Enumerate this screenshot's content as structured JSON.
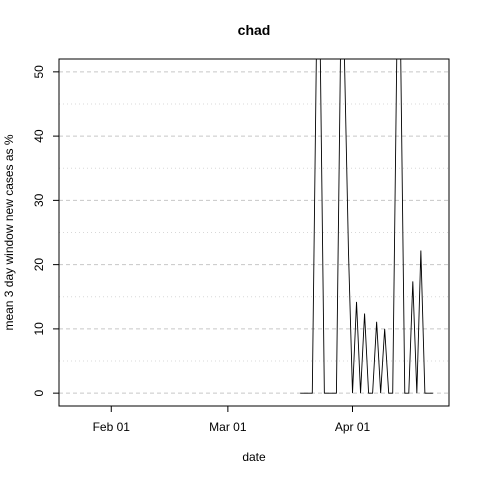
{
  "chart_data": {
    "type": "line",
    "title": "chad",
    "xlabel": "date",
    "ylabel": "mean  3  day window new cases as %",
    "x_ticks": [
      {
        "date": "2020-02-01",
        "label": "Feb 01"
      },
      {
        "date": "2020-03-01",
        "label": "Mar 01"
      },
      {
        "date": "2020-04-01",
        "label": "Apr 01"
      }
    ],
    "y_ticks": [
      0,
      10,
      20,
      30,
      40,
      50
    ],
    "xlim": [
      "2020-01-19",
      "2020-04-25"
    ],
    "ylim": [
      -2,
      52
    ],
    "grid_major": [
      0,
      10,
      20,
      30,
      40,
      50
    ],
    "grid_minor": [
      5,
      15,
      25,
      35,
      45
    ],
    "series": [
      {
        "values": [
          {
            "date": "2020-03-19",
            "y": 0
          },
          {
            "date": "2020-03-22",
            "y": 0
          },
          {
            "date": "2020-03-23",
            "y": 52
          },
          {
            "date": "2020-03-24",
            "y": 52
          },
          {
            "date": "2020-03-25",
            "y": 0
          },
          {
            "date": "2020-03-28",
            "y": 0
          },
          {
            "date": "2020-03-29",
            "y": 52
          },
          {
            "date": "2020-03-30",
            "y": 52
          },
          {
            "date": "2020-03-31",
            "y": 22
          },
          {
            "date": "2020-04-01",
            "y": 0
          },
          {
            "date": "2020-04-02",
            "y": 14.2
          },
          {
            "date": "2020-04-03",
            "y": 0
          },
          {
            "date": "2020-04-04",
            "y": 12.4
          },
          {
            "date": "2020-04-05",
            "y": 0
          },
          {
            "date": "2020-04-06",
            "y": 0
          },
          {
            "date": "2020-04-07",
            "y": 11.1
          },
          {
            "date": "2020-04-08",
            "y": 0
          },
          {
            "date": "2020-04-09",
            "y": 10
          },
          {
            "date": "2020-04-10",
            "y": 0
          },
          {
            "date": "2020-04-11",
            "y": 0
          },
          {
            "date": "2020-04-12",
            "y": 52
          },
          {
            "date": "2020-04-13",
            "y": 52
          },
          {
            "date": "2020-04-14",
            "y": 0
          },
          {
            "date": "2020-04-15",
            "y": 0
          },
          {
            "date": "2020-04-16",
            "y": 17.4
          },
          {
            "date": "2020-04-17",
            "y": 0
          },
          {
            "date": "2020-04-18",
            "y": 22.2
          },
          {
            "date": "2020-04-19",
            "y": 0
          },
          {
            "date": "2020-04-21",
            "y": 0
          }
        ]
      }
    ]
  }
}
